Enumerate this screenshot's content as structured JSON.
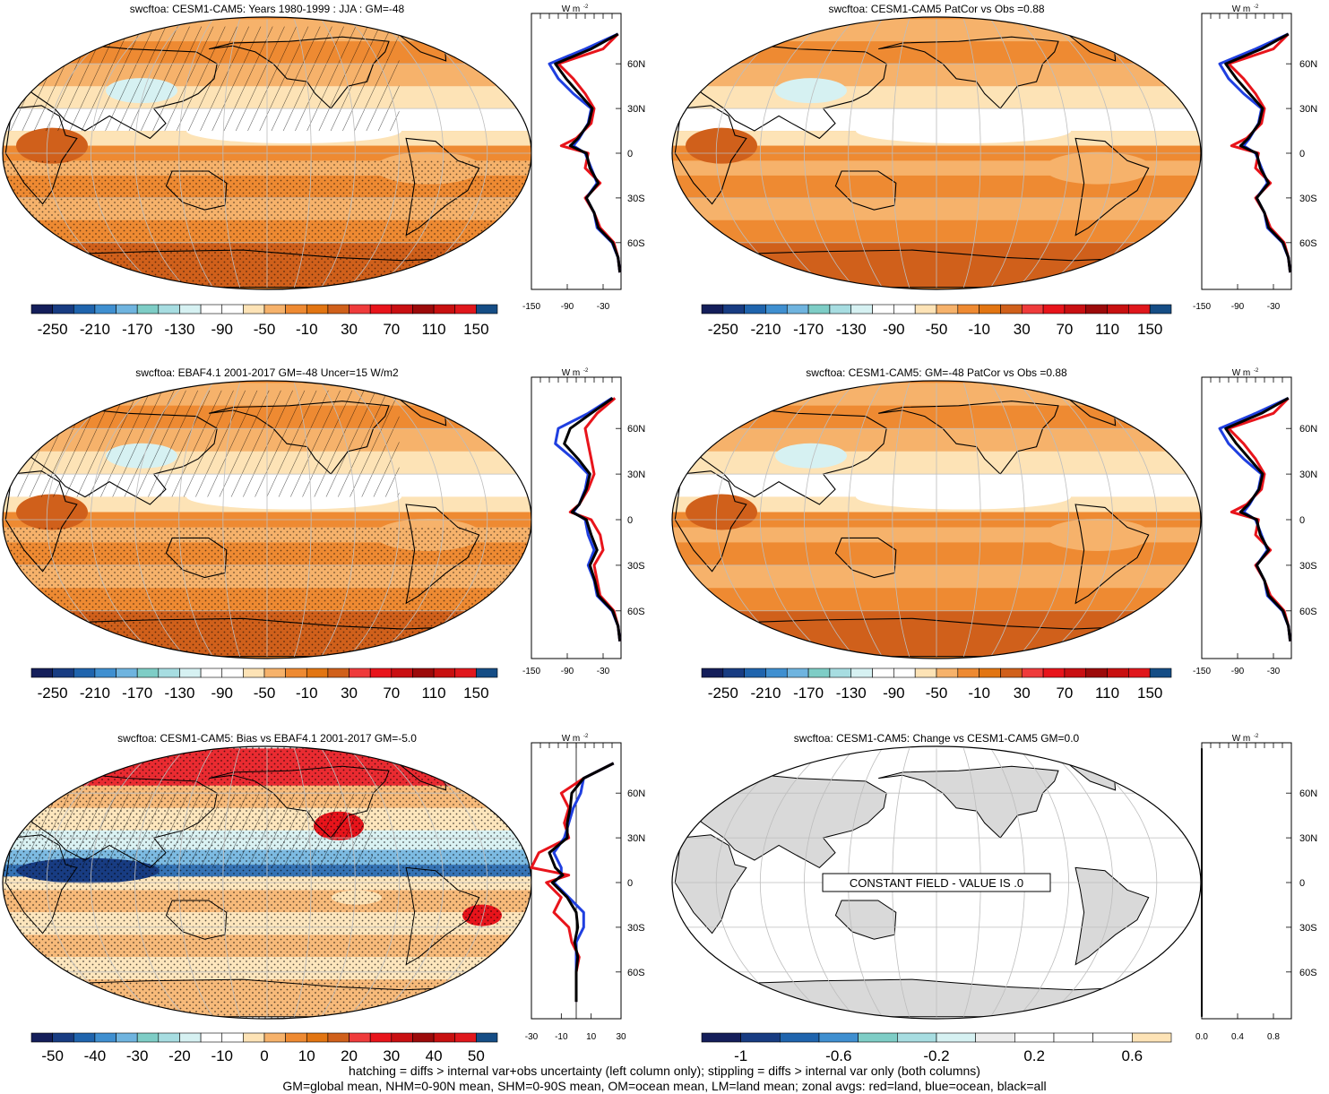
{
  "panels": [
    {
      "title": "swcftoa: CESM1-CAM5: Years 1980-1999 : JJA : GM=-48",
      "type": "model"
    },
    {
      "title": "swcftoa: CESM1-CAM5 PatCor vs Obs =0.88",
      "type": "model-plain"
    },
    {
      "title": "swcftoa: EBAF4.1 2001-2017 GM=-48 Uncer=15 W/m2",
      "type": "obs"
    },
    {
      "title": "swcftoa: CESM1-CAM5: GM=-48 PatCor vs Obs =0.88",
      "type": "model-plain"
    },
    {
      "title": "swcftoa: CESM1-CAM5: Bias vs EBAF4.1 2001-2017 GM=-5.0",
      "type": "bias"
    },
    {
      "title": "swcftoa: CESM1-CAM5: Change vs CESM1-CAM5 GM=0.0",
      "type": "change"
    }
  ],
  "constant_field_text": "CONSTANT FIELD - VALUE IS .0",
  "colorbars": {
    "abs": {
      "labels": [
        "-250",
        "-210",
        "-170",
        "-130",
        "-90",
        "-50",
        "-10",
        "30",
        "70",
        "110",
        "150"
      ],
      "colors": [
        "#141e5a",
        "#183c82",
        "#1f64ad",
        "#3f8fd0",
        "#6fb4df",
        "#7ecdc6",
        "#a7dde1",
        "#d6f1f2",
        "#ffffff",
        "#ffffff",
        "#fde3b6",
        "#f6b26b",
        "#ee8a32",
        "#e27512",
        "#d0601b",
        "#ef3b3b",
        "#e8141b",
        "#c90f12",
        "#9c0a0a",
        "#c81010",
        "#e0171c",
        "#154d85"
      ]
    },
    "bias": {
      "labels": [
        "-50",
        "-40",
        "-30",
        "-20",
        "-10",
        "0",
        "10",
        "20",
        "30",
        "40",
        "50"
      ],
      "colors": [
        "#141e5a",
        "#183c82",
        "#1f64ad",
        "#3f8fd0",
        "#6fb4df",
        "#7ecdc6",
        "#a7dde1",
        "#d6f1f2",
        "#ffffff",
        "#ffffff",
        "#fde3b6",
        "#f6b26b",
        "#ee8a32",
        "#e27512",
        "#d0601b",
        "#ef3b3b",
        "#e8141b",
        "#c90f12",
        "#9c0a0a",
        "#c81010",
        "#e0171c",
        "#154d85"
      ]
    },
    "change": {
      "labels": [
        "-1",
        "-0.6",
        "-0.2",
        "0.2",
        "0.6"
      ],
      "colors": [
        "#141e5a",
        "#183c82",
        "#1f64ad",
        "#3f8fd0",
        "#7ecdc6",
        "#a7dde1",
        "#d6f1f2",
        "#ececec",
        "#ffffff",
        "#ffffff",
        "#ffffff",
        "#fde3b6"
      ]
    }
  },
  "map_colors": {
    "ocean_field": "#ee8a32",
    "light_field": "#f6b26b",
    "dark_field": "#d0601b",
    "pale_field": "#fde3b6",
    "cool_field": "#d6f1f2",
    "land_gray": "#d9d9d9",
    "grid": "#bdbdbd"
  },
  "zonal": {
    "units_label": "W m",
    "units_exponent": "-2",
    "lat_labels": [
      "60N",
      "30N",
      "0",
      "30S",
      "60S"
    ],
    "abs_xlabels": [
      "-150",
      "-90",
      "-30"
    ],
    "bias_xlabels": [
      "-30",
      "-10",
      "10",
      "30"
    ],
    "change_xlabels": [
      "0.0",
      "0.4",
      "0.8"
    ],
    "legend_colors": {
      "land": "#e8141b",
      "ocean": "#1f3fe0",
      "all": "#000000"
    }
  },
  "chart_data": [
    {
      "type": "line",
      "title": "swcftoa: CESM1-CAM5: Years 1980-1999 : JJA : GM=-48",
      "xlabel": "W m-2",
      "xlim": [
        -150,
        0
      ],
      "series": [
        {
          "lat": [
            80,
            70,
            60,
            50,
            40,
            30,
            20,
            10,
            5,
            0,
            -10,
            -20,
            -30,
            -40,
            -50,
            -60,
            -70,
            -80
          ],
          "values": [
            -5,
            -30,
            -105,
            -80,
            -60,
            -45,
            -50,
            -75,
            -100,
            -55,
            -60,
            -35,
            -60,
            -45,
            -35,
            -12,
            -5,
            -2
          ]
        },
        {
          "lat": [
            80,
            70,
            60,
            50,
            40,
            30,
            20,
            10,
            5,
            0,
            -10,
            -20,
            -30,
            -40,
            -50,
            -60,
            -70,
            -80
          ],
          "values": [
            -5,
            -60,
            -120,
            -105,
            -80,
            -50,
            -55,
            -70,
            -80,
            -60,
            -50,
            -40,
            -58,
            -45,
            -40,
            -15,
            -5,
            -2
          ]
        },
        {
          "lat": [
            80,
            70,
            60,
            50,
            40,
            30,
            20,
            10,
            5,
            0,
            -10,
            -20,
            -30,
            -40,
            -50,
            -60,
            -70,
            -80
          ],
          "values": [
            -5,
            -50,
            -110,
            -92,
            -70,
            -48,
            -54,
            -72,
            -85,
            -58,
            -52,
            -38,
            -58,
            -45,
            -38,
            -14,
            -5,
            -2
          ]
        }
      ]
    },
    {
      "type": "line",
      "title": "swcftoa: CESM1-CAM5 PatCor vs Obs =0.88",
      "xlabel": "W m-2",
      "xlim": [
        -150,
        0
      ],
      "series": [
        {
          "lat": [
            80,
            70,
            60,
            50,
            40,
            30,
            20,
            10,
            5,
            0,
            -10,
            -20,
            -30,
            -40,
            -50,
            -60,
            -70,
            -80
          ],
          "values": [
            -5,
            -30,
            -105,
            -80,
            -60,
            -45,
            -50,
            -75,
            -100,
            -55,
            -60,
            -35,
            -60,
            -45,
            -35,
            -12,
            -5,
            -2
          ]
        },
        {
          "lat": [
            80,
            70,
            60,
            50,
            40,
            30,
            20,
            10,
            5,
            0,
            -10,
            -20,
            -30,
            -40,
            -50,
            -60,
            -70,
            -80
          ],
          "values": [
            -5,
            -60,
            -120,
            -105,
            -80,
            -50,
            -55,
            -70,
            -80,
            -60,
            -50,
            -40,
            -58,
            -45,
            -40,
            -15,
            -5,
            -2
          ]
        },
        {
          "lat": [
            80,
            70,
            60,
            50,
            40,
            30,
            20,
            10,
            5,
            0,
            -10,
            -20,
            -30,
            -40,
            -50,
            -60,
            -70,
            -80
          ],
          "values": [
            -5,
            -50,
            -110,
            -92,
            -70,
            -48,
            -54,
            -72,
            -85,
            -58,
            -52,
            -38,
            -58,
            -45,
            -38,
            -14,
            -5,
            -2
          ]
        }
      ]
    },
    {
      "type": "line",
      "title": "swcftoa: EBAF4.1 2001-2017 GM=-48 Uncer=15 W/m2",
      "xlabel": "W m-2",
      "xlim": [
        -150,
        0
      ],
      "series": [
        {
          "lat": [
            80,
            70,
            60,
            50,
            40,
            30,
            20,
            10,
            5,
            0,
            -10,
            -20,
            -30,
            -40,
            -50,
            -60,
            -70,
            -80
          ],
          "values": [
            -10,
            -40,
            -60,
            -55,
            -50,
            -45,
            -55,
            -70,
            -85,
            -50,
            -35,
            -30,
            -45,
            -40,
            -35,
            -12,
            -5,
            -2
          ]
        },
        {
          "lat": [
            80,
            70,
            60,
            50,
            40,
            30,
            20,
            10,
            5,
            0,
            -10,
            -20,
            -30,
            -40,
            -50,
            -60,
            -70,
            -80
          ],
          "values": [
            -15,
            -55,
            -105,
            -110,
            -80,
            -55,
            -60,
            -70,
            -80,
            -60,
            -55,
            -45,
            -55,
            -45,
            -40,
            -15,
            -5,
            -2
          ]
        },
        {
          "lat": [
            80,
            70,
            60,
            50,
            40,
            30,
            20,
            10,
            5,
            0,
            -10,
            -20,
            -30,
            -40,
            -50,
            -60,
            -70,
            -80
          ],
          "values": [
            -14,
            -50,
            -85,
            -95,
            -72,
            -52,
            -58,
            -70,
            -82,
            -58,
            -50,
            -40,
            -52,
            -44,
            -38,
            -14,
            -5,
            -2
          ]
        }
      ]
    },
    {
      "type": "line",
      "title": "swcftoa: CESM1-CAM5: GM=-48 PatCor vs Obs =0.88",
      "xlabel": "W m-2",
      "xlim": [
        -150,
        0
      ],
      "series": [
        {
          "lat": [
            80,
            70,
            60,
            50,
            40,
            30,
            20,
            10,
            5,
            0,
            -10,
            -20,
            -30,
            -40,
            -50,
            -60,
            -70,
            -80
          ],
          "values": [
            -5,
            -30,
            -105,
            -80,
            -60,
            -45,
            -50,
            -75,
            -100,
            -55,
            -60,
            -35,
            -60,
            -45,
            -35,
            -12,
            -5,
            -2
          ]
        },
        {
          "lat": [
            80,
            70,
            60,
            50,
            40,
            30,
            20,
            10,
            5,
            0,
            -10,
            -20,
            -30,
            -40,
            -50,
            -60,
            -70,
            -80
          ],
          "values": [
            -5,
            -60,
            -120,
            -105,
            -80,
            -50,
            -55,
            -70,
            -80,
            -60,
            -50,
            -40,
            -58,
            -45,
            -40,
            -15,
            -5,
            -2
          ]
        },
        {
          "lat": [
            80,
            70,
            60,
            50,
            40,
            30,
            20,
            10,
            5,
            0,
            -10,
            -20,
            -30,
            -40,
            -50,
            -60,
            -70,
            -80
          ],
          "values": [
            -5,
            -50,
            -110,
            -92,
            -70,
            -48,
            -54,
            -72,
            -85,
            -58,
            -52,
            -38,
            -58,
            -45,
            -38,
            -14,
            -5,
            -2
          ]
        }
      ]
    },
    {
      "type": "line",
      "title": "swcftoa: CESM1-CAM5: Bias vs EBAF4.1 2001-2017 GM=-5.0",
      "xlabel": "W m-2",
      "xlim": [
        -30,
        30
      ],
      "series": [
        {
          "lat": [
            80,
            70,
            60,
            50,
            40,
            30,
            20,
            10,
            5,
            0,
            -10,
            -20,
            -30,
            -40,
            -50,
            -60,
            -70,
            -80
          ],
          "values": [
            25,
            5,
            -10,
            -5,
            -8,
            -5,
            -25,
            -30,
            -5,
            -20,
            -10,
            -15,
            -5,
            -3,
            2,
            0,
            0,
            0
          ]
        },
        {
          "lat": [
            80,
            70,
            60,
            50,
            40,
            30,
            20,
            10,
            5,
            0,
            -10,
            -20,
            -30,
            -40,
            -50,
            -60,
            -70,
            -80
          ],
          "values": [
            25,
            5,
            3,
            -2,
            -5,
            -8,
            -15,
            -10,
            -10,
            -15,
            -5,
            5,
            5,
            0,
            0,
            0,
            0,
            0
          ]
        },
        {
          "lat": [
            80,
            70,
            60,
            50,
            40,
            30,
            20,
            10,
            5,
            0,
            -10,
            -20,
            -30,
            -40,
            -50,
            -60,
            -70,
            -80
          ],
          "values": [
            25,
            5,
            -3,
            -4,
            -6,
            -6,
            -18,
            -14,
            -9,
            -16,
            -6,
            0,
            1,
            -1,
            1,
            0,
            0,
            0
          ]
        }
      ]
    },
    {
      "type": "line",
      "title": "swcftoa: CESM1-CAM5: Change vs CESM1-CAM5 GM=0.0",
      "xlabel": "W m-2",
      "xlim": [
        0,
        1
      ],
      "series": [
        {
          "lat": [
            90,
            -90
          ],
          "values": [
            0,
            0
          ]
        }
      ]
    }
  ],
  "footer": {
    "line1": "hatching = diffs > internal var+obs uncertainty (left column only); stippling = diffs > internal var only (both columns)",
    "line2": "GM=global mean, NHM=0-90N mean, SHM=0-90S mean, OM=ocean mean, LM=land mean; zonal avgs: red=land, blue=ocean, black=all"
  }
}
